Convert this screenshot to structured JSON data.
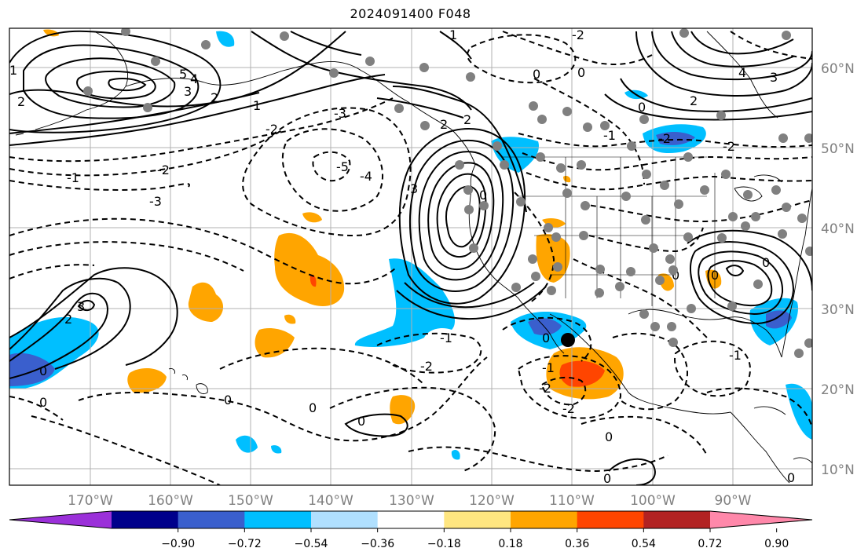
{
  "title": "2024091400 F048",
  "map": {
    "lat_labels": [
      "60°N",
      "50°N",
      "40°N",
      "30°N",
      "20°N",
      "10°N"
    ],
    "lon_labels": [
      "170°W",
      "160°W",
      "150°W",
      "140°W",
      "130°W",
      "120°W",
      "110°W",
      "100°W",
      "90°W"
    ],
    "contour_labels": [
      "-1",
      "-2",
      "-3",
      "-4",
      "-5",
      "0",
      "1",
      "2",
      "3",
      "4",
      "5"
    ],
    "shading_colors": {
      "neg_strong": "#3a5fcd",
      "neg_mid": "#00bfff",
      "neg_weak": "#b0e0ff",
      "pos_weak": "#ffe680",
      "pos_mid": "#ffa500",
      "pos_strong": "#ff4500"
    },
    "marker": "storm-center-marker",
    "stations": "station-dots"
  },
  "colorbar": {
    "ticks": [
      "−0.90",
      "−0.72",
      "−0.54",
      "−0.36",
      "−0.18",
      "0.18",
      "0.36",
      "0.54",
      "0.72",
      "0.90"
    ],
    "colors": [
      "#9b30d9",
      "#00008b",
      "#3a5fcd",
      "#00bfff",
      "#b0e0ff",
      "#ffffff",
      "#ffe680",
      "#ffa500",
      "#ff4500",
      "#b22222",
      "#ff88aa"
    ]
  }
}
